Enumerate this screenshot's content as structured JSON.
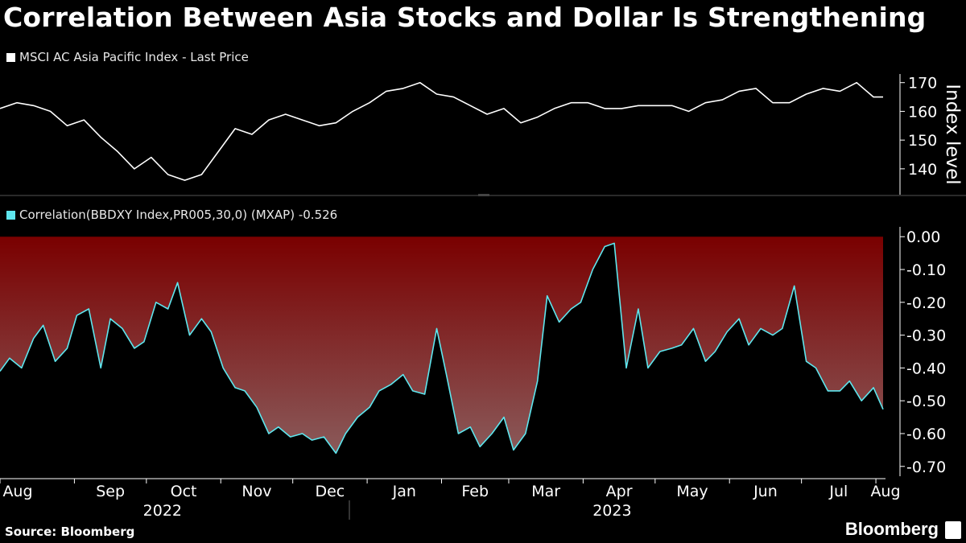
{
  "title": "Correlation Between Asia Stocks and Dollar Is Strengthening",
  "footer": {
    "source": "Source: Bloomberg",
    "brand": "Bloomberg",
    "brand_icon": "bloomberg-terminal-icon"
  },
  "colors": {
    "background": "#000000",
    "price_line": "#ffffff",
    "corr_line": "#5ee6ee",
    "fill_top": "#7a0000",
    "fill_bottom": "#8a5a5a"
  },
  "chart_data": [
    {
      "type": "line",
      "legend": "MSCI AC Asia Pacific Index - Last Price",
      "ylabel": "Index level",
      "ylim": [
        131,
        173
      ],
      "yticks": [
        140,
        150,
        160,
        170
      ],
      "series": [
        {
          "x": [
            "2022-08-01",
            "2022-08-08",
            "2022-08-15",
            "2022-08-22",
            "2022-08-29",
            "2022-09-05",
            "2022-09-12",
            "2022-09-19",
            "2022-09-26",
            "2022-10-03",
            "2022-10-10",
            "2022-10-17",
            "2022-10-24",
            "2022-10-31",
            "2022-11-07",
            "2022-11-14",
            "2022-11-21",
            "2022-11-28",
            "2022-12-05",
            "2022-12-12",
            "2022-12-19",
            "2022-12-26",
            "2023-01-02",
            "2023-01-09",
            "2023-01-16",
            "2023-01-23",
            "2023-01-30",
            "2023-02-06",
            "2023-02-13",
            "2023-02-20",
            "2023-02-27",
            "2023-03-06",
            "2023-03-13",
            "2023-03-20",
            "2023-03-27",
            "2023-04-03",
            "2023-04-10",
            "2023-04-17",
            "2023-04-24",
            "2023-05-01",
            "2023-05-08",
            "2023-05-15",
            "2023-05-22",
            "2023-05-29",
            "2023-06-05",
            "2023-06-12",
            "2023-06-19",
            "2023-06-26",
            "2023-07-03",
            "2023-07-10",
            "2023-07-17",
            "2023-07-24",
            "2023-07-31",
            "2023-08-04"
          ],
          "y": [
            161,
            163,
            162,
            160,
            155,
            157,
            151,
            146,
            140,
            144,
            138,
            136,
            138,
            146,
            154,
            152,
            157,
            159,
            157,
            155,
            156,
            160,
            163,
            167,
            168,
            170,
            166,
            165,
            162,
            159,
            161,
            156,
            158,
            161,
            163,
            163,
            161,
            161,
            162,
            162,
            162,
            160,
            163,
            164,
            167,
            168,
            163,
            163,
            166,
            168,
            167,
            170,
            165,
            165
          ]
        }
      ]
    },
    {
      "type": "area",
      "legend": "Correlation(BBDXY Index,PR005,30,0) (MXAP) -0.526",
      "ylim": [
        -0.73,
        0.03
      ],
      "yticks": [
        0.0,
        -0.1,
        -0.2,
        -0.3,
        -0.4,
        -0.5,
        -0.6,
        -0.7
      ],
      "ytick_labels": [
        "0.00",
        "-0.10",
        "-0.20",
        "-0.30",
        "-0.40",
        "-0.50",
        "-0.60",
        "-0.70"
      ],
      "fill_to": 0.0,
      "series": [
        {
          "x": [
            "2022-08-01",
            "2022-08-05",
            "2022-08-10",
            "2022-08-15",
            "2022-08-19",
            "2022-08-24",
            "2022-08-29",
            "2022-09-02",
            "2022-09-07",
            "2022-09-12",
            "2022-09-16",
            "2022-09-21",
            "2022-09-26",
            "2022-09-30",
            "2022-10-05",
            "2022-10-10",
            "2022-10-14",
            "2022-10-19",
            "2022-10-24",
            "2022-10-28",
            "2022-11-02",
            "2022-11-07",
            "2022-11-11",
            "2022-11-16",
            "2022-11-21",
            "2022-11-25",
            "2022-11-30",
            "2022-12-05",
            "2022-12-09",
            "2022-12-14",
            "2022-12-19",
            "2022-12-23",
            "2022-12-28",
            "2023-01-02",
            "2023-01-06",
            "2023-01-11",
            "2023-01-16",
            "2023-01-20",
            "2023-01-25",
            "2023-01-30",
            "2023-02-03",
            "2023-02-08",
            "2023-02-13",
            "2023-02-17",
            "2023-02-22",
            "2023-02-27",
            "2023-03-03",
            "2023-03-08",
            "2023-03-13",
            "2023-03-17",
            "2023-03-22",
            "2023-03-27",
            "2023-03-31",
            "2023-04-05",
            "2023-04-10",
            "2023-04-14",
            "2023-04-19",
            "2023-04-24",
            "2023-04-28",
            "2023-05-03",
            "2023-05-08",
            "2023-05-12",
            "2023-05-17",
            "2023-05-22",
            "2023-05-26",
            "2023-05-31",
            "2023-06-05",
            "2023-06-09",
            "2023-06-14",
            "2023-06-19",
            "2023-06-23",
            "2023-06-28",
            "2023-07-03",
            "2023-07-07",
            "2023-07-12",
            "2023-07-17",
            "2023-07-21",
            "2023-07-26",
            "2023-07-31",
            "2023-08-04"
          ],
          "y": [
            -0.41,
            -0.37,
            -0.4,
            -0.31,
            -0.27,
            -0.38,
            -0.34,
            -0.24,
            -0.22,
            -0.4,
            -0.25,
            -0.28,
            -0.34,
            -0.32,
            -0.2,
            -0.22,
            -0.14,
            -0.3,
            -0.25,
            -0.29,
            -0.4,
            -0.46,
            -0.47,
            -0.52,
            -0.6,
            -0.58,
            -0.61,
            -0.6,
            -0.62,
            -0.61,
            -0.66,
            -0.6,
            -0.55,
            -0.52,
            -0.47,
            -0.45,
            -0.42,
            -0.47,
            -0.48,
            -0.28,
            -0.42,
            -0.6,
            -0.58,
            -0.64,
            -0.6,
            -0.55,
            -0.65,
            -0.6,
            -0.44,
            -0.18,
            -0.26,
            -0.22,
            -0.2,
            -0.1,
            -0.03,
            -0.02,
            -0.4,
            -0.22,
            -0.4,
            -0.35,
            -0.34,
            -0.33,
            -0.28,
            -0.38,
            -0.35,
            -0.29,
            -0.25,
            -0.33,
            -0.28,
            -0.3,
            -0.28,
            -0.15,
            -0.38,
            -0.4,
            -0.47,
            -0.47,
            -0.44,
            -0.5,
            -0.46,
            -0.526
          ]
        }
      ],
      "xaxis": {
        "months": [
          {
            "label": "Aug",
            "date": "2022-08-01"
          },
          {
            "label": "Sep",
            "date": "2022-09-01"
          },
          {
            "label": "Oct",
            "date": "2022-10-01"
          },
          {
            "label": "Nov",
            "date": "2022-11-01"
          },
          {
            "label": "Dec",
            "date": "2022-12-01"
          },
          {
            "label": "Jan",
            "date": "2023-01-01"
          },
          {
            "label": "Feb",
            "date": "2023-02-01"
          },
          {
            "label": "Mar",
            "date": "2023-03-01"
          },
          {
            "label": "Apr",
            "date": "2023-04-01"
          },
          {
            "label": "May",
            "date": "2023-05-01"
          },
          {
            "label": "Jun",
            "date": "2023-06-01"
          },
          {
            "label": "Jul",
            "date": "2023-07-01"
          },
          {
            "label": "Aug",
            "date": "2023-08-01"
          }
        ],
        "years": [
          {
            "label": "2022",
            "date": "2022-10-01"
          },
          {
            "label": "2023",
            "date": "2023-04-01"
          }
        ]
      }
    }
  ]
}
